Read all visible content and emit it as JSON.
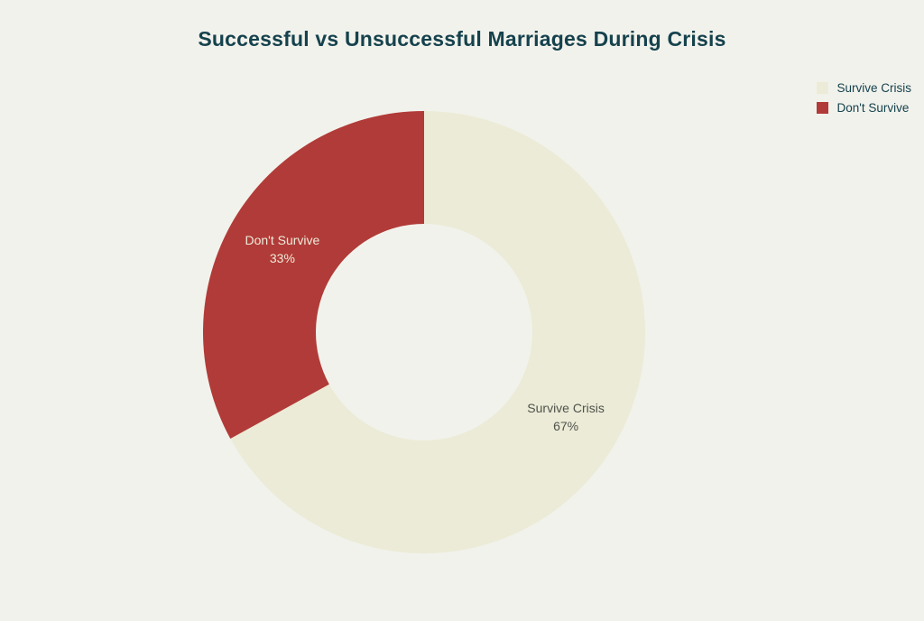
{
  "chart_data": {
    "type": "pie",
    "title": "Successful vs Unsuccessful Marriages During Crisis",
    "hole": 0.49,
    "legend_position": "top-right",
    "segments": [
      {
        "label": "Survive Crisis",
        "value": 67,
        "percent_label": "67%",
        "color": "#ebebd7",
        "label_color": "#50524b"
      },
      {
        "label": "Don't Survive",
        "value": 33,
        "percent_label": "33%",
        "color": "#b13b38",
        "label_color": "#eeecdc"
      }
    ],
    "colors": {
      "background": "#f2f2ec",
      "title_text": "#15424d",
      "legend_text": "#15424d"
    }
  }
}
